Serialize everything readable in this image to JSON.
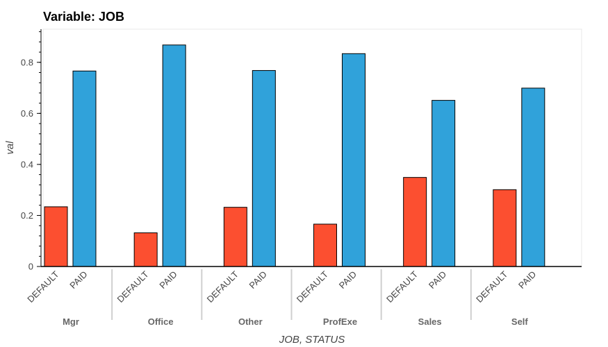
{
  "chart_data": {
    "type": "bar",
    "title": "Variable: JOB",
    "xlabel": "JOB, STATUS",
    "ylabel": "val",
    "ylim": [
      0,
      0.93
    ],
    "yticks": [
      0,
      0.2,
      0.4,
      0.6,
      0.8
    ],
    "ytick_labels": [
      "0",
      "0.2",
      "0.4",
      "0.6",
      "0.8"
    ],
    "grid": false,
    "categories": [
      "Mgr",
      "Office",
      "Other",
      "ProfExe",
      "Sales",
      "Self"
    ],
    "subcategories": [
      "DEFAULT",
      "PAID"
    ],
    "colors": {
      "DEFAULT": "#fc4f30",
      "PAID": "#30a2da"
    },
    "series": [
      {
        "name": "DEFAULT",
        "values": [
          0.234,
          0.132,
          0.232,
          0.166,
          0.349,
          0.301
        ]
      },
      {
        "name": "PAID",
        "values": [
          0.766,
          0.868,
          0.768,
          0.834,
          0.651,
          0.699
        ]
      }
    ]
  }
}
